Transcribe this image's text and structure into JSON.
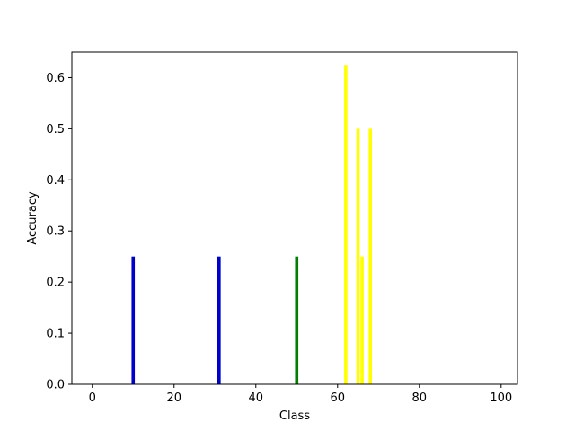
{
  "chart_data": {
    "type": "bar",
    "title": "",
    "xlabel": "Class",
    "ylabel": "Accuracy",
    "xlim": [
      -5,
      104
    ],
    "ylim": [
      0,
      0.65
    ],
    "x_ticks": [
      0,
      20,
      40,
      60,
      80,
      100
    ],
    "y_ticks": [
      0.0,
      0.1,
      0.2,
      0.3,
      0.4,
      0.5,
      0.6
    ],
    "x_tick_labels": [
      "0",
      "20",
      "40",
      "60",
      "80",
      "100"
    ],
    "y_tick_labels": [
      "0.0",
      "0.1",
      "0.2",
      "0.3",
      "0.4",
      "0.5",
      "0.6"
    ],
    "grid": false,
    "bar_width": 0.8,
    "bars": [
      {
        "x": 10,
        "value": 0.25,
        "color": "#0000cc"
      },
      {
        "x": 31,
        "value": 0.25,
        "color": "#0000cc"
      },
      {
        "x": 50,
        "value": 0.25,
        "color": "#008000"
      },
      {
        "x": 62,
        "value": 0.625,
        "color": "#ffff00"
      },
      {
        "x": 65,
        "value": 0.5,
        "color": "#ffff00"
      },
      {
        "x": 66,
        "value": 0.25,
        "color": "#ffff00"
      },
      {
        "x": 68,
        "value": 0.5,
        "color": "#ffff00"
      }
    ]
  }
}
